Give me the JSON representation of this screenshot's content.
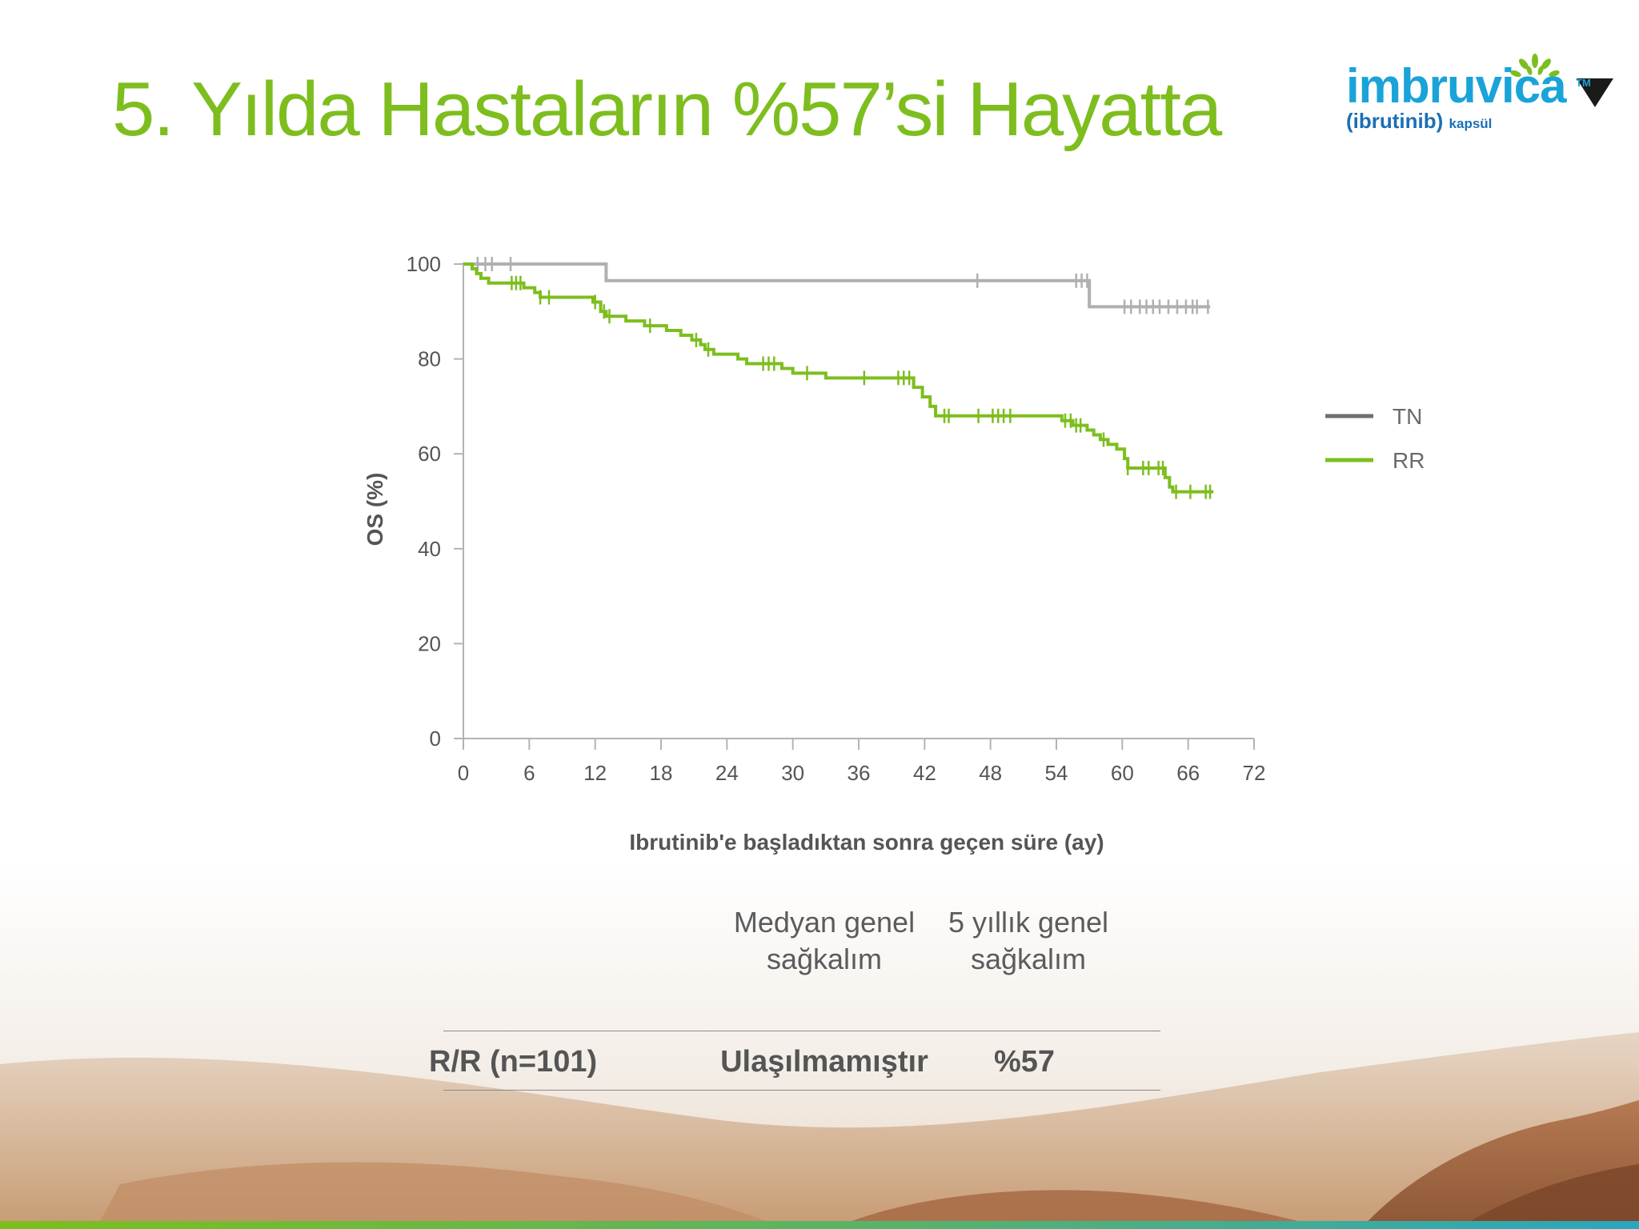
{
  "slide": {
    "title": "5. Yılda Hastaların %57’si Hayatta"
  },
  "brand": {
    "name": "imbruvica",
    "trademark": "TM",
    "generic": "(ibrutinib)",
    "form": "kapsül",
    "colors": {
      "name": "#1aa3d9",
      "generic": "#1b6fb5",
      "leaves": "#7dbe1e"
    }
  },
  "colors": {
    "title": "#7dbe1e",
    "tn_series": "#b0b0b0",
    "rr_series": "#7dbe1e",
    "axis": "#b3b3b3",
    "text": "#555555",
    "bottom_bar_start": "#7dbe1e",
    "bottom_bar_end": "#2aa6bf"
  },
  "icons": [
    "black-triangle-icon",
    "imbruvica-logo-leaves-icon"
  ],
  "chart_data": {
    "type": "line",
    "subtype": "kaplan-meier step curve",
    "xlabel": "Ibrutinib'e başladıktan sonra geçen süre (ay)",
    "ylabel": "OS (%)",
    "xlim": [
      0,
      72
    ],
    "ylim": [
      0,
      100
    ],
    "x_ticks": [
      0,
      6,
      12,
      18,
      24,
      30,
      36,
      42,
      48,
      54,
      60,
      66,
      72
    ],
    "y_ticks": [
      0,
      20,
      40,
      60,
      80,
      100
    ],
    "grid": false,
    "legend_position": "right",
    "series": [
      {
        "name": "TN",
        "color": "#b0b0b0",
        "steps": [
          [
            0,
            100
          ],
          [
            13,
            96.5
          ],
          [
            57,
            91
          ]
        ],
        "end": 68,
        "censored": [
          1.3,
          2.0,
          2.6,
          4.3,
          46.8,
          55.8,
          56.3,
          56.8,
          60.2,
          60.8,
          61.6,
          62.2,
          62.8,
          63.4,
          64.2,
          65.0,
          65.8,
          66.4,
          66.8,
          67.8
        ]
      },
      {
        "name": "RR",
        "color": "#7dbe1e",
        "steps": [
          [
            0,
            100
          ],
          [
            0.8,
            99
          ],
          [
            1.2,
            98
          ],
          [
            1.6,
            97
          ],
          [
            2.3,
            96
          ],
          [
            5.5,
            95
          ],
          [
            6.5,
            94
          ],
          [
            7.0,
            93
          ],
          [
            11.8,
            92
          ],
          [
            12.5,
            90
          ],
          [
            13.0,
            89
          ],
          [
            14.8,
            88
          ],
          [
            16.5,
            87
          ],
          [
            18.5,
            86
          ],
          [
            19.8,
            85
          ],
          [
            20.8,
            84
          ],
          [
            21.6,
            83
          ],
          [
            22.0,
            82
          ],
          [
            22.8,
            81
          ],
          [
            25.0,
            80
          ],
          [
            25.8,
            79
          ],
          [
            29.0,
            78
          ],
          [
            30.0,
            77
          ],
          [
            33.0,
            76
          ],
          [
            41.0,
            74
          ],
          [
            41.8,
            72
          ],
          [
            42.5,
            70
          ],
          [
            43.0,
            68
          ],
          [
            54.5,
            67
          ],
          [
            55.5,
            66
          ],
          [
            56.8,
            65
          ],
          [
            57.4,
            64
          ],
          [
            58.0,
            63
          ],
          [
            58.7,
            62
          ],
          [
            59.5,
            61
          ],
          [
            60.2,
            59
          ],
          [
            60.5,
            57
          ],
          [
            63.9,
            55
          ],
          [
            64.3,
            53
          ],
          [
            64.6,
            52
          ]
        ],
        "end": 68.3,
        "censored": [
          4.4,
          4.8,
          5.2,
          7.0,
          7.8,
          12.0,
          12.8,
          13.3,
          17.0,
          21.2,
          22.3,
          27.3,
          27.8,
          28.3,
          31.3,
          36.5,
          39.6,
          40.1,
          40.6,
          43.8,
          44.2,
          46.9,
          48.2,
          48.7,
          49.2,
          49.8,
          54.8,
          55.3,
          55.8,
          56.2,
          58.3,
          60.5,
          61.9,
          62.4,
          63.3,
          63.7,
          64.9,
          66.2,
          67.6,
          68.0
        ]
      }
    ]
  },
  "summary_table": {
    "columns": [
      "",
      "Medyan genel\nsağkalım",
      "5 yıllık genel\nsağkalım"
    ],
    "rows": [
      {
        "label": "R/R (n=101)",
        "median": "Ulaşılmamıştır",
        "five_year": "%57"
      }
    ]
  }
}
